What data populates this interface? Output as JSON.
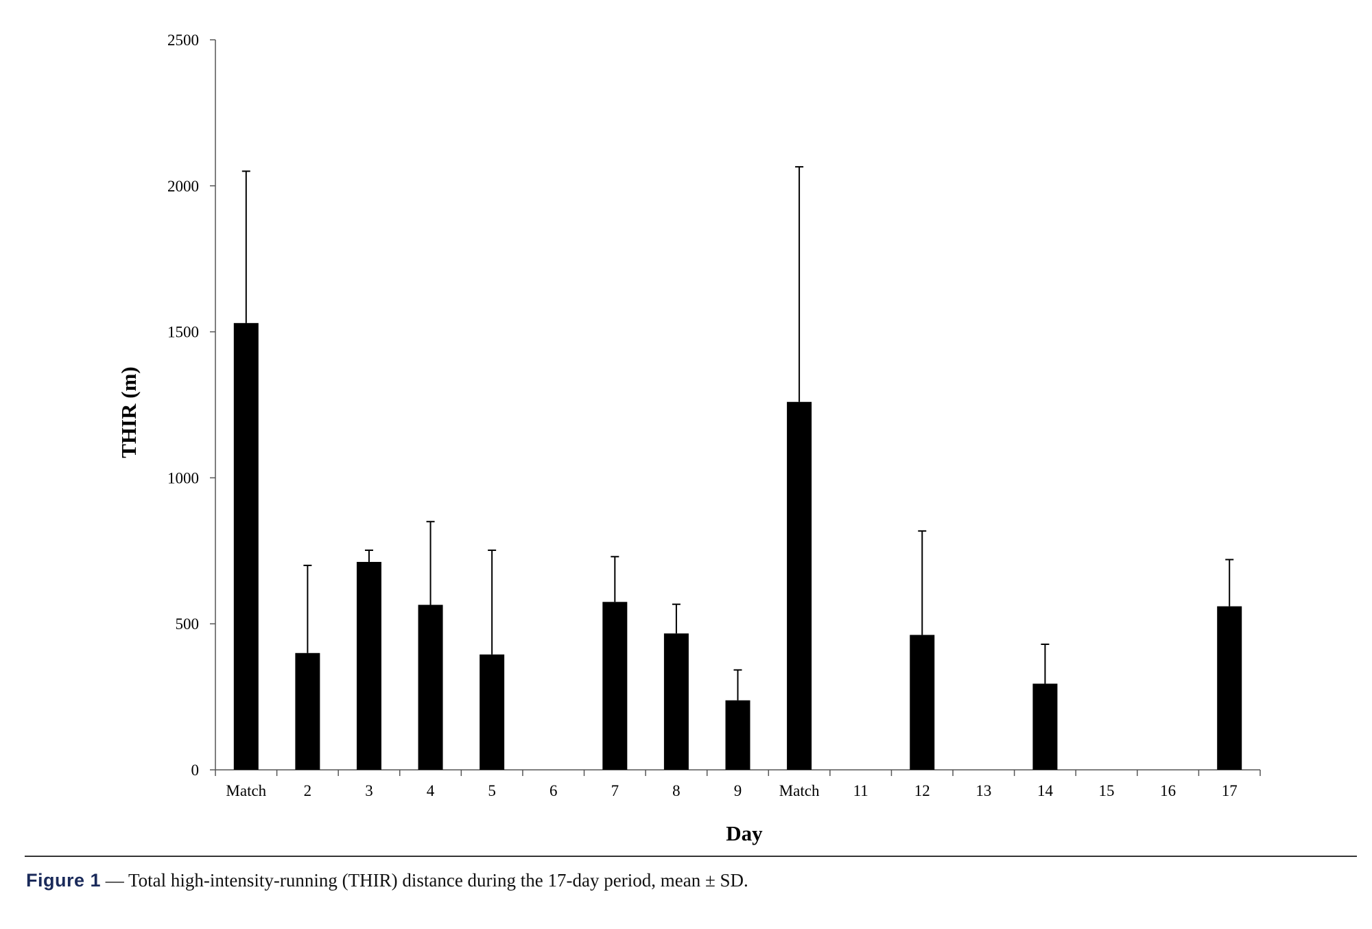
{
  "chart_data": {
    "type": "bar",
    "xlabel": "Day",
    "ylabel": "THIR (m)",
    "ylim": [
      0,
      2500
    ],
    "yticks": [
      "0",
      "500",
      "1000",
      "1500",
      "2000",
      "2500"
    ],
    "grid": false,
    "error_bars": "mean ± SD (upper only)",
    "bar_color": "#000000",
    "categories": [
      "Match",
      "2",
      "3",
      "4",
      "5",
      "6",
      "7",
      "8",
      "9",
      "Match",
      "11",
      "12",
      "13",
      "14",
      "15",
      "16",
      "17"
    ],
    "series": [
      {
        "values": [
          1530,
          400,
          712,
          565,
          395,
          null,
          575,
          467,
          238,
          1260,
          null,
          462,
          null,
          295,
          null,
          null,
          560
        ],
        "error_upper": [
          2050,
          700,
          752,
          850,
          752,
          null,
          730,
          567,
          342,
          2065,
          null,
          818,
          null,
          430,
          null,
          null,
          720
        ]
      }
    ]
  },
  "caption": {
    "label": "Figure 1",
    "text": " — Total high-intensity-running (THIR) distance during the 17-day period, mean ± SD."
  }
}
